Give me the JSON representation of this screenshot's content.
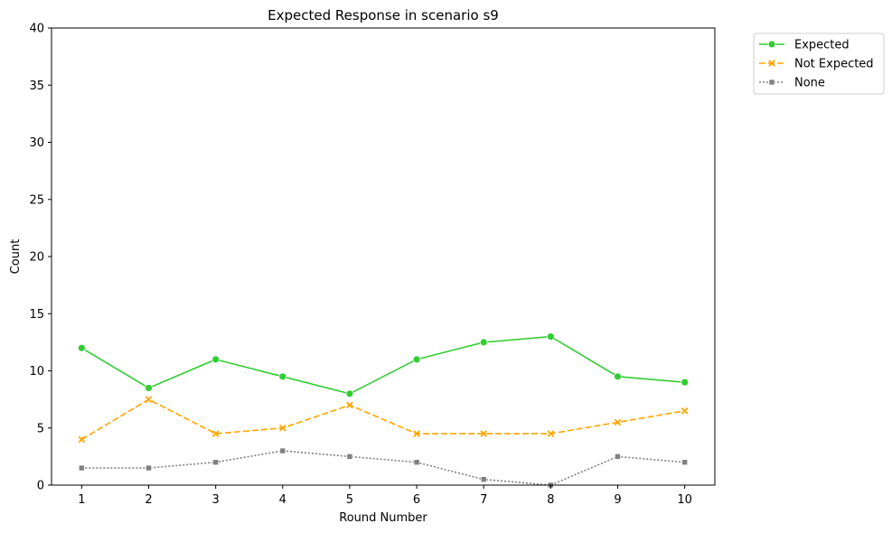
{
  "chart_data": {
    "type": "line",
    "title": "Expected Response in scenario s9",
    "xlabel": "Round Number",
    "ylabel": "Count",
    "x": [
      1,
      2,
      3,
      4,
      5,
      6,
      7,
      8,
      9,
      10
    ],
    "xticks": [
      "1",
      "2",
      "3",
      "4",
      "5",
      "6",
      "7",
      "8",
      "9",
      "10"
    ],
    "ylim": [
      0,
      40
    ],
    "yticks": [
      "0",
      "5",
      "10",
      "15",
      "20",
      "25",
      "30",
      "35",
      "40"
    ],
    "grid": false,
    "legend_position": "outside-top-right",
    "series": [
      {
        "name": "Expected",
        "values": [
          12,
          8.5,
          11,
          9.5,
          8,
          11,
          12.5,
          13,
          9.5,
          9
        ],
        "color": "#32cd32",
        "dash": "solid",
        "marker": "circle"
      },
      {
        "name": "Not Expected",
        "values": [
          4,
          7.5,
          4.5,
          5,
          7,
          4.5,
          4.5,
          4.5,
          5.5,
          6.5
        ],
        "color": "#ffa500",
        "dash": "dashed",
        "marker": "x"
      },
      {
        "name": "None",
        "values": [
          1.5,
          1.5,
          2,
          3,
          2.5,
          2,
          0.5,
          0,
          2.5,
          2
        ],
        "color": "#808080",
        "dash": "dotted",
        "marker": "square"
      }
    ]
  }
}
